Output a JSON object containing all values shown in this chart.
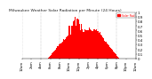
{
  "title": "Milwaukee Weather Solar Radiation per Minute (24 Hours)",
  "bar_color": "#ff0000",
  "background_color": "#ffffff",
  "grid_color": "#888888",
  "num_points": 1440,
  "legend_label": "Solar Rad",
  "legend_color": "#ff0000",
  "ylim": [
    0,
    1.0
  ],
  "xlabel_fontsize": 2.8,
  "ylabel_fontsize": 2.8,
  "title_fontsize": 3.2
}
